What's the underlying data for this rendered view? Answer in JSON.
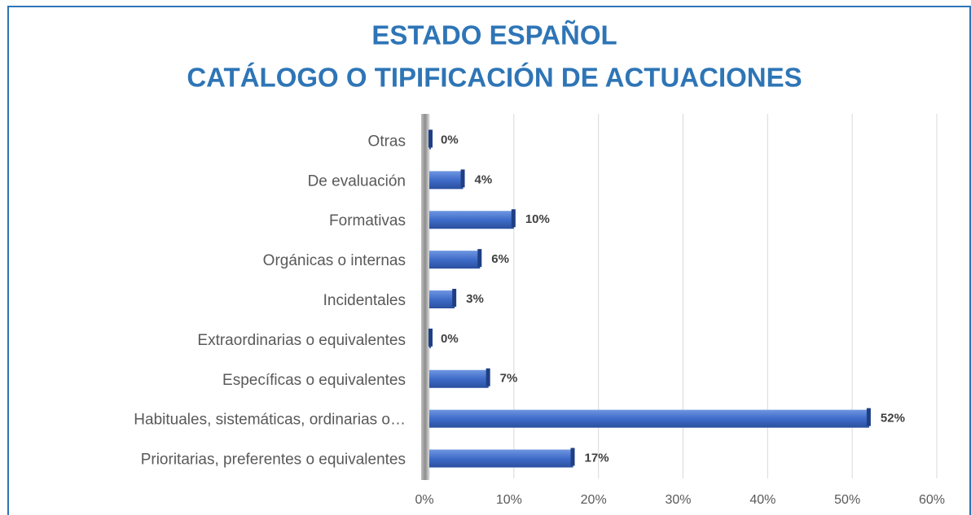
{
  "chart_data": {
    "type": "bar",
    "orientation": "horizontal",
    "title": "ESTADO ESPAÑOL",
    "subtitle": "CATÁLOGO O TIPIFICACIÓN DE ACTUACIONES",
    "categories": [
      "Otras",
      "De evaluación",
      "Formativas",
      "Orgánicas o internas",
      "Incidentales",
      "Extraordinarias o equivalentes",
      "Específicas o equivalentes",
      "Habituales, sistemáticas, ordinarias o…",
      "Prioritarias, preferentes o equivalentes"
    ],
    "values": [
      0,
      4,
      10,
      6,
      3,
      0,
      7,
      52,
      17
    ],
    "value_labels": [
      "0%",
      "4%",
      "10%",
      "6%",
      "3%",
      "0%",
      "7%",
      "52%",
      "17%"
    ],
    "color": "#4472c4",
    "xlim": [
      0,
      60
    ],
    "xticks": [
      {
        "value": 0,
        "label": "0%"
      },
      {
        "value": 10,
        "label": "10%"
      },
      {
        "value": 20,
        "label": "20%"
      },
      {
        "value": 30,
        "label": "30%"
      },
      {
        "value": 40,
        "label": "40%"
      },
      {
        "value": 50,
        "label": "50%"
      },
      {
        "value": 60,
        "label": "60%"
      }
    ],
    "grid": true
  }
}
